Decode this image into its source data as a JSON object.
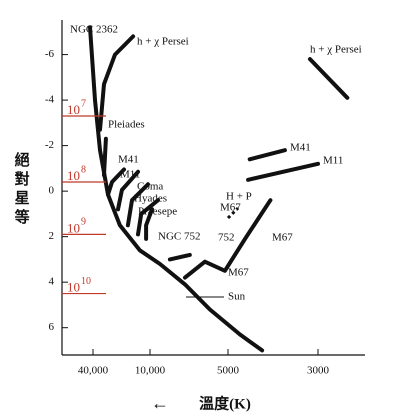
{
  "chart_data": {
    "type": "line",
    "x_label": "溫度(K)",
    "x_arrow": "←",
    "y_label": "絕對星等",
    "y_inverted": true,
    "x_inverted": true,
    "ylim": [
      -7.3,
      7.2
    ],
    "yticks": [
      -6,
      -4,
      -2,
      0,
      2,
      4,
      6
    ],
    "xlim": [
      60000,
      2500
    ],
    "xticks": [
      {
        "value": 40000,
        "label": "40,000"
      },
      {
        "value": 10000,
        "label": "10,000"
      },
      5000,
      3000
    ],
    "series": [
      {
        "name": "NGC 2362",
        "color": "#111111",
        "x": [
          43000,
          38100,
          33700,
          27800,
          20800,
          12800,
          9150,
          7330,
          5870,
          4670,
          4120
        ],
        "values": [
          -7.2,
          -4.0,
          -1.8,
          0.15,
          1.5,
          2.6,
          3.2,
          4.1,
          5.2,
          6.3,
          7.0
        ]
      },
      {
        "name": "h + χ Persei",
        "color": "#111111",
        "x": [
          15100,
          23400,
          30600,
          33700,
          null,
          3140,
          2540
        ],
        "values": [
          -6.8,
          -6.0,
          -4.7,
          -2.7,
          null,
          -5.8,
          -4.1
        ]
      },
      {
        "name": "Pleiades",
        "color": "#111111",
        "x": [
          29200,
          30600
        ],
        "values": [
          -2.3,
          -0.7
        ]
      },
      {
        "name": "M41",
        "color": "#111111",
        "x": [
          18800,
          25200,
          27800,
          null,
          4420,
          3620
        ],
        "values": [
          -0.95,
          -0.4,
          0.15,
          null,
          -1.4,
          -1.8
        ]
      },
      {
        "name": "M11",
        "color": "#111111",
        "x": [
          13400,
          19800,
          21800,
          null,
          4460,
          3000
        ],
        "values": [
          -0.85,
          -0.05,
          0.8,
          null,
          -0.5,
          -1.2
        ]
      },
      {
        "name": "Coma",
        "color": "#111111",
        "x": [
          10500,
          15500,
          17100
        ],
        "values": [
          -0.3,
          0.4,
          1.5
        ]
      },
      {
        "name": "Hyades",
        "color": "#111111",
        "x": [
          9310,
          12400,
          13400
        ],
        "values": [
          0.4,
          1.0,
          1.9
        ]
      },
      {
        "name": "Praesepe",
        "color": "#111111",
        "x": [
          9820,
          11000,
          11000
        ],
        "values": [
          0.8,
          1.5,
          2.1
        ]
      },
      {
        "name": "NGC 752",
        "color": "#111111",
        "x": [
          7020,
          8380
        ],
        "values": [
          2.8,
          3.0
        ]
      },
      {
        "name": "M67",
        "color": "#111111",
        "x": [
          7330,
          6140,
          5140,
          4540,
          3930
        ],
        "values": [
          3.8,
          3.1,
          3.5,
          2.1,
          0.4
        ]
      }
    ],
    "annotations": [
      {
        "text": "H + P"
      },
      {
        "text": "752"
      },
      {
        "text": "M67"
      },
      {
        "text": "Sun"
      }
    ],
    "age_marks": [
      {
        "base": "10",
        "exp": "7",
        "y": -3.3
      },
      {
        "base": "10",
        "exp": "8",
        "y": -0.4
      },
      {
        "base": "10",
        "exp": "9",
        "y": 1.9
      },
      {
        "base": "10",
        "exp": "10",
        "y": 4.5
      }
    ]
  }
}
